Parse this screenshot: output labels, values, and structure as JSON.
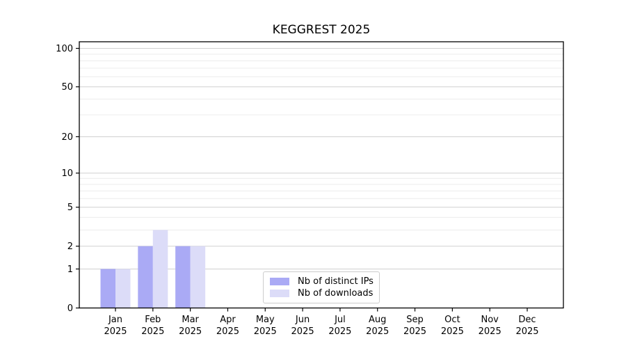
{
  "chart_data": {
    "type": "bar",
    "title": "KEGGREST 2025",
    "categories": [
      "Jan",
      "Feb",
      "Mar",
      "Apr",
      "May",
      "Jun",
      "Jul",
      "Aug",
      "Sep",
      "Oct",
      "Nov",
      "Dec"
    ],
    "category_year": "2025",
    "series": [
      {
        "name": "Nb of distinct IPs",
        "color": "#aaaaf5",
        "values": [
          1,
          2,
          2,
          0,
          0,
          0,
          0,
          0,
          0,
          0,
          0,
          0
        ]
      },
      {
        "name": "Nb of downloads",
        "color": "#dcdcf8",
        "values": [
          1,
          3,
          2,
          0,
          0,
          0,
          0,
          0,
          0,
          0,
          0,
          0
        ]
      }
    ],
    "xlabel": "",
    "ylabel": "",
    "yscale": "log1p",
    "ylim": [
      0,
      113
    ],
    "yticks": [
      0,
      1,
      2,
      5,
      10,
      20,
      50,
      100
    ],
    "yticks_minor": [
      3,
      4,
      6,
      7,
      8,
      9,
      30,
      40,
      60,
      70,
      80,
      90
    ],
    "grid": "horizontal",
    "legend_position": "inside-bottom-center",
    "colors": {
      "axis": "#000000",
      "grid_major": "#d0d0d0",
      "grid_minor": "#ececec",
      "legend_border": "#cccccc"
    }
  }
}
